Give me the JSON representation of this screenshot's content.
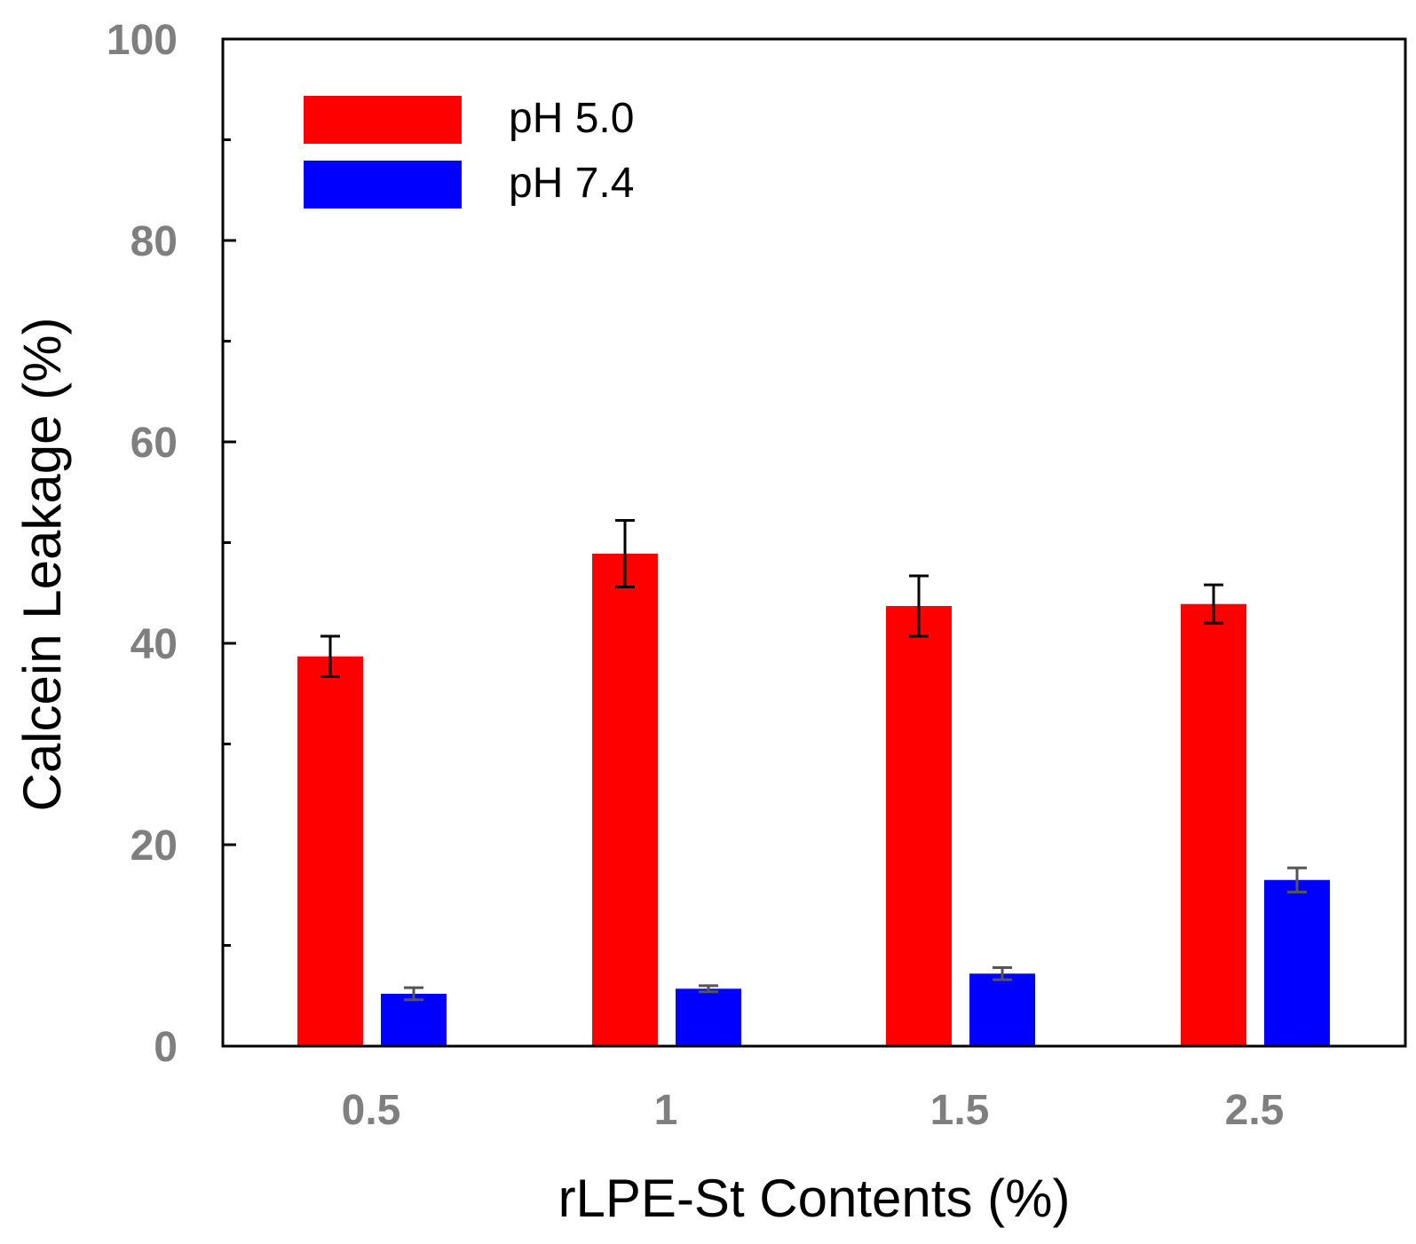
{
  "chart_data": {
    "type": "bar",
    "title": "",
    "xlabel": "rLPE-St Contents (%)",
    "ylabel": "Calcein Leakage (%)",
    "categories": [
      "0.5",
      "1",
      "1.5",
      "2.5"
    ],
    "ylim": [
      0,
      100
    ],
    "y_major_ticks": [
      "0",
      "20",
      "40",
      "60",
      "80",
      "100"
    ],
    "y_minor_ticks": [
      10,
      30,
      50,
      70,
      90
    ],
    "grid": false,
    "legend_position": "top-left",
    "series": [
      {
        "name": "pH 5.0",
        "color": "#ff0000",
        "values": [
          38.7,
          48.9,
          43.7,
          43.9
        ],
        "errors": [
          2.0,
          3.3,
          3.0,
          1.9
        ],
        "error_color": "#000000"
      },
      {
        "name": "pH 7.4",
        "color": "#0000ff",
        "values": [
          5.2,
          5.7,
          7.2,
          16.5
        ],
        "errors": [
          0.6,
          0.3,
          0.6,
          1.2
        ],
        "error_color": "#555555"
      }
    ]
  }
}
